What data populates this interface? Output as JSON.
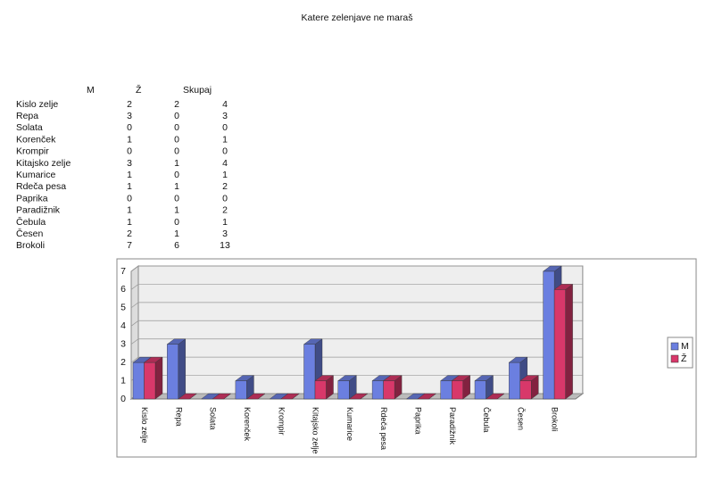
{
  "title": "Katere zelenjave ne maraš",
  "table": {
    "header": [
      "M",
      "Ž",
      "Skupaj"
    ],
    "rows": [
      [
        "Kislo zelje",
        2,
        2,
        4
      ],
      [
        "Repa",
        3,
        0,
        3
      ],
      [
        "Solata",
        0,
        0,
        0
      ],
      [
        "Korenček",
        1,
        0,
        1
      ],
      [
        "Krompir",
        0,
        0,
        0
      ],
      [
        "Kitajsko zelje",
        3,
        1,
        4
      ],
      [
        "Kumarice",
        1,
        0,
        1
      ],
      [
        "Rdeča pesa",
        1,
        1,
        2
      ],
      [
        "Paprika",
        0,
        0,
        0
      ],
      [
        "Paradižnik",
        1,
        1,
        2
      ],
      [
        "Čebula",
        1,
        0,
        1
      ],
      [
        "Česen",
        2,
        1,
        3
      ],
      [
        "Brokoli",
        7,
        6,
        13
      ]
    ]
  },
  "chart_data": {
    "type": "bar3d",
    "categories": [
      "Kislo zelje",
      "Repa",
      "Solata",
      "Korenček",
      "Krompir",
      "Kitajsko zelje",
      "Kumarice",
      "Rdeča pesa",
      "Paprika",
      "Paradižnik",
      "Čebula",
      "Česen",
      "Brokoli"
    ],
    "series": [
      {
        "name": "M",
        "color": "#6b7fe0",
        "values": [
          2,
          3,
          0,
          1,
          0,
          3,
          1,
          1,
          0,
          1,
          1,
          2,
          7
        ]
      },
      {
        "name": "Ž",
        "color": "#d8386a",
        "values": [
          2,
          0,
          0,
          0,
          0,
          1,
          0,
          1,
          0,
          1,
          0,
          1,
          6
        ]
      }
    ],
    "ylim": [
      0,
      7
    ],
    "yticks": [
      0,
      1,
      2,
      3,
      4,
      5,
      6,
      7
    ],
    "grid": true,
    "legend": "right"
  }
}
